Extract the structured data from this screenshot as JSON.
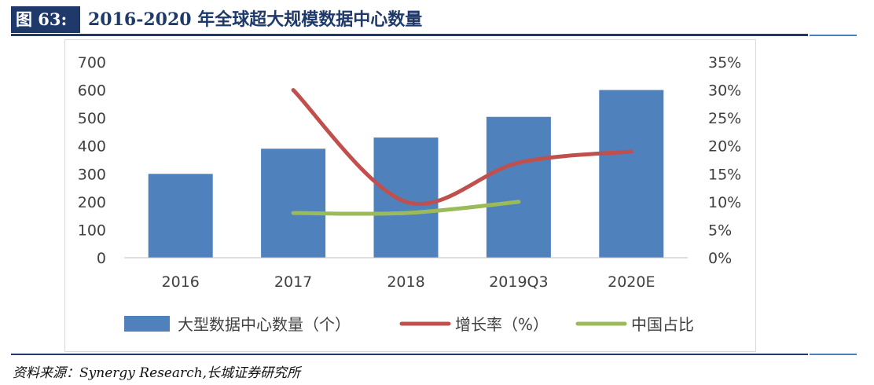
{
  "figure": {
    "number_label": "图 63:",
    "title": "2016-2020 年全球超大规模数据中心数量",
    "source": "资料来源：Synergy Research,长城证券研究所"
  },
  "chart_data": {
    "type": "bar",
    "categories": [
      "2016",
      "2017",
      "2018",
      "2019Q3",
      "2020E"
    ],
    "y_left": {
      "ticks": [
        0,
        100,
        200,
        300,
        400,
        500,
        600,
        700
      ],
      "ylim": [
        0,
        700
      ]
    },
    "y_right": {
      "ticks": [
        "0%",
        "5%",
        "10%",
        "15%",
        "20%",
        "25%",
        "30%",
        "35%"
      ],
      "ylim": [
        0,
        35
      ]
    },
    "series": [
      {
        "name": "大型数据中心数量（个）",
        "type": "bar",
        "axis": "left",
        "values": [
          300,
          390,
          430,
          504,
          600
        ],
        "color": "#4f81bd"
      },
      {
        "name": "增长率（%）",
        "type": "line",
        "axis": "right",
        "values": [
          null,
          30,
          10,
          17,
          19
        ],
        "color": "#c0504d"
      },
      {
        "name": "中国占比",
        "type": "line",
        "axis": "right",
        "values": [
          null,
          8,
          8,
          10,
          null
        ],
        "color": "#9bbb59"
      }
    ],
    "legend_position": "bottom",
    "grid": false
  }
}
